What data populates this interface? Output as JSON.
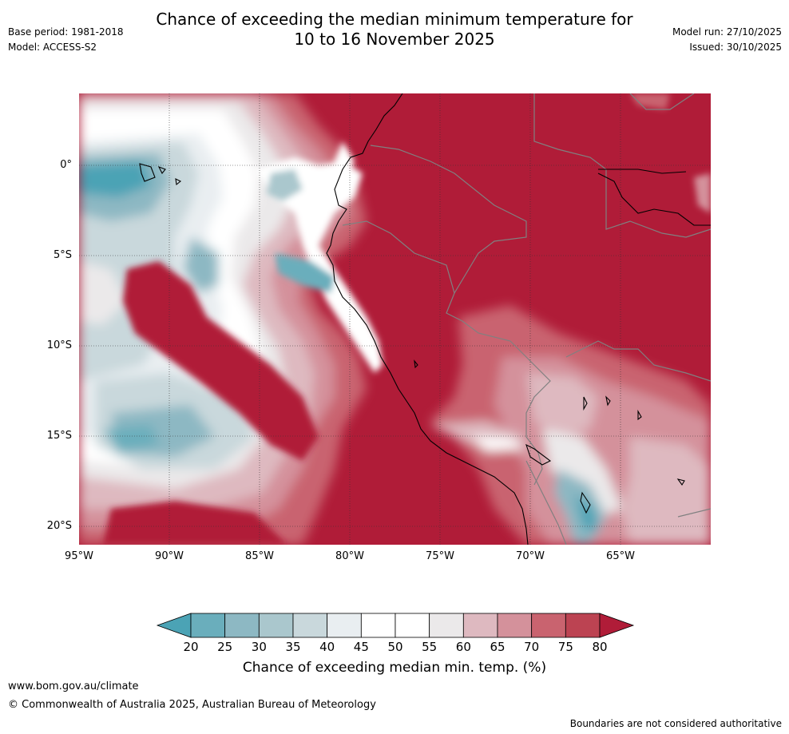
{
  "header": {
    "title_line1": "Chance of exceeding the median minimum temperature for",
    "title_line2": "10 to 16 November 2025",
    "base_period": "Base period: 1981-2018",
    "model": "Model: ACCESS-S2",
    "model_run": "Model run: 27/10/2025",
    "issued": "Issued: 30/10/2025"
  },
  "map": {
    "lat_labels": [
      "0°",
      "5°S",
      "10°S",
      "15°S",
      "20°S"
    ],
    "lon_labels": [
      "95°W",
      "90°W",
      "85°W",
      "80°W",
      "75°W",
      "70°W",
      "65°W"
    ],
    "extent": {
      "lon_min": -95,
      "lon_max": -60,
      "lat_min": -21,
      "lat_max": 4
    },
    "regions": [
      {
        "type": "pale-zone",
        "level": "45-55",
        "desc": "coastal-offshore"
      },
      {
        "type": "teal-zone",
        "level": "20-35",
        "desc": "galapagos-west"
      }
    ]
  },
  "colorbar": {
    "ticks": [
      "20",
      "25",
      "30",
      "35",
      "40",
      "45",
      "50",
      "55",
      "60",
      "65",
      "70",
      "75",
      "80"
    ],
    "colors": [
      "#4ba3b5",
      "#6aaebc",
      "#8db8c3",
      "#aac7cd",
      "#c9d8dc",
      "#e9eef1",
      "#ffffff",
      "#ffffff",
      "#ebe9ea",
      "#deb9c0",
      "#d4919b",
      "#c9636f",
      "#bc4352",
      "#b01c38"
    ],
    "label": "Chance of exceeding median min. temp. (%)"
  },
  "footer": {
    "url": "www.bom.gov.au/climate",
    "copyright": "© Commonwealth of Australia 2025, Australian Bureau of Meteorology",
    "note": "Boundaries are not considered authoritative"
  }
}
